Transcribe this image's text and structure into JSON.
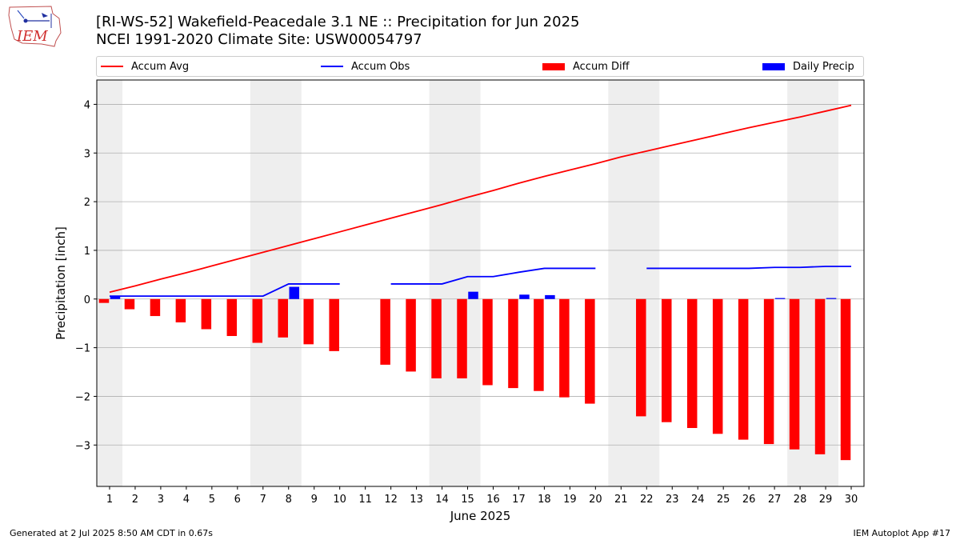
{
  "title_line1": "[RI-WS-52] Wakefield-Peacedale 3.1 NE :: Precipitation for Jun 2025",
  "title_line2": "NCEI 1991-2020 Climate Site: USW00054797",
  "logo_text": "IEM",
  "footer_left": "Generated at 2 Jul 2025 8:50 AM CDT in 0.67s",
  "footer_right": "IEM Autoplot App #17",
  "colors": {
    "avg": "#ff0000",
    "obs": "#0000ff",
    "diff": "#ff0000",
    "daily": "#0000ff",
    "weekend": "#eeeeee",
    "grid": "#b0b0b0"
  },
  "legend": [
    {
      "label": "Accum Avg",
      "kind": "line",
      "color": "#ff0000"
    },
    {
      "label": "Accum Obs",
      "kind": "line",
      "color": "#0000ff"
    },
    {
      "label": "Accum Diff",
      "kind": "box",
      "color": "#ff0000"
    },
    {
      "label": "Daily Precip",
      "kind": "box",
      "color": "#0000ff"
    }
  ],
  "chart_data": {
    "type": "bar",
    "xlabel": "June 2025",
    "ylabel": "Precipitation [inch]",
    "xlim": [
      0.5,
      30.5
    ],
    "ylim": [
      -3.85,
      4.5
    ],
    "yticks": [
      -3,
      -2,
      -1,
      0,
      1,
      2,
      3,
      4
    ],
    "ytick_labels": [
      "−3",
      "−2",
      "−1",
      "0",
      "1",
      "2",
      "3",
      "4"
    ],
    "days": [
      1,
      2,
      3,
      4,
      5,
      6,
      7,
      8,
      9,
      10,
      11,
      12,
      13,
      14,
      15,
      16,
      17,
      18,
      19,
      20,
      21,
      22,
      23,
      24,
      25,
      26,
      27,
      28,
      29,
      30
    ],
    "weekend_spans": [
      [
        0.5,
        1.5
      ],
      [
        6.5,
        8.5
      ],
      [
        13.5,
        15.5
      ],
      [
        20.5,
        22.5
      ],
      [
        27.5,
        29.5
      ]
    ],
    "grid": "horizontal",
    "series": [
      {
        "name": "Accum Avg",
        "type": "line",
        "values": [
          0.14,
          0.27,
          0.41,
          0.54,
          0.68,
          0.82,
          0.96,
          1.1,
          1.24,
          1.38,
          1.52,
          1.66,
          1.8,
          1.94,
          2.09,
          2.23,
          2.38,
          2.52,
          2.65,
          2.78,
          2.92,
          3.04,
          3.16,
          3.28,
          3.4,
          3.52,
          3.63,
          3.74,
          3.86,
          3.98
        ]
      },
      {
        "name": "Accum Obs",
        "type": "line",
        "values": [
          0.06,
          0.06,
          0.06,
          0.06,
          0.06,
          0.06,
          0.06,
          0.31,
          0.31,
          0.31,
          null,
          0.31,
          0.31,
          0.31,
          0.46,
          0.46,
          0.55,
          0.63,
          0.63,
          0.63,
          null,
          0.63,
          0.63,
          0.63,
          0.63,
          0.63,
          0.65,
          0.65,
          0.67,
          0.67
        ]
      },
      {
        "name": "Accum Diff",
        "type": "bar",
        "values": [
          -0.08,
          -0.21,
          -0.35,
          -0.48,
          -0.62,
          -0.76,
          -0.9,
          -0.79,
          -0.93,
          -1.07,
          null,
          -1.35,
          -1.49,
          -1.63,
          -1.63,
          -1.77,
          -1.83,
          -1.89,
          -2.02,
          -2.15,
          null,
          -2.41,
          -2.53,
          -2.65,
          -2.77,
          -2.89,
          -2.98,
          -3.09,
          -3.19,
          -3.31
        ]
      },
      {
        "name": "Daily Precip",
        "type": "bar",
        "values": [
          0.06,
          0,
          0,
          0,
          0,
          0,
          0,
          0.25,
          0,
          0,
          null,
          0,
          0,
          0,
          0.15,
          0,
          0.09,
          0.08,
          0,
          0,
          null,
          0,
          0,
          0,
          0,
          0,
          0.02,
          0,
          0.02,
          0
        ]
      }
    ]
  }
}
